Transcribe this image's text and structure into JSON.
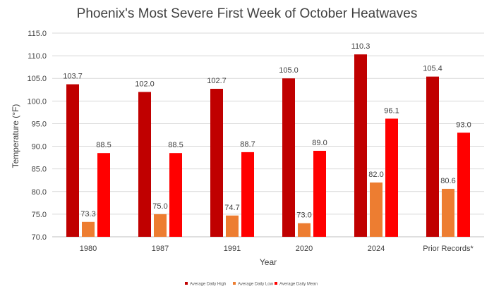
{
  "chart_data": {
    "type": "bar",
    "title": "Phoenix's Most Severe First Week of October Heatwaves",
    "xlabel": "Year",
    "ylabel": "Temperature (°F)",
    "ylim": [
      70.0,
      115.0
    ],
    "y_ticks": [
      "70.0",
      "75.0",
      "80.0",
      "85.0",
      "90.0",
      "95.0",
      "100.0",
      "105.0",
      "110.0",
      "115.0"
    ],
    "categories": [
      "1980",
      "1987",
      "1991",
      "2020",
      "2024",
      "Prior Records*"
    ],
    "grid": true,
    "legend_position": "bottom",
    "series": [
      {
        "name": "Average Daily High",
        "color": "#C00000",
        "values": [
          103.7,
          102.0,
          102.7,
          105.0,
          110.3,
          105.4
        ],
        "labels": [
          "103.7",
          "102.0",
          "102.7",
          "105.0",
          "110.3",
          "105.4"
        ]
      },
      {
        "name": "Average Daily Low",
        "color": "#ED7D31",
        "values": [
          73.3,
          75.0,
          74.7,
          73.0,
          82.0,
          80.6
        ],
        "labels": [
          "73.3",
          "75.0",
          "74.7",
          "73.0",
          "82.0",
          "80.6"
        ]
      },
      {
        "name": "Average Daily Mean",
        "color": "#FF0000",
        "values": [
          88.5,
          88.5,
          88.7,
          89.0,
          96.1,
          93.0
        ],
        "labels": [
          "88.5",
          "88.5",
          "88.7",
          "89.0",
          "96.1",
          "93.0"
        ]
      }
    ]
  }
}
